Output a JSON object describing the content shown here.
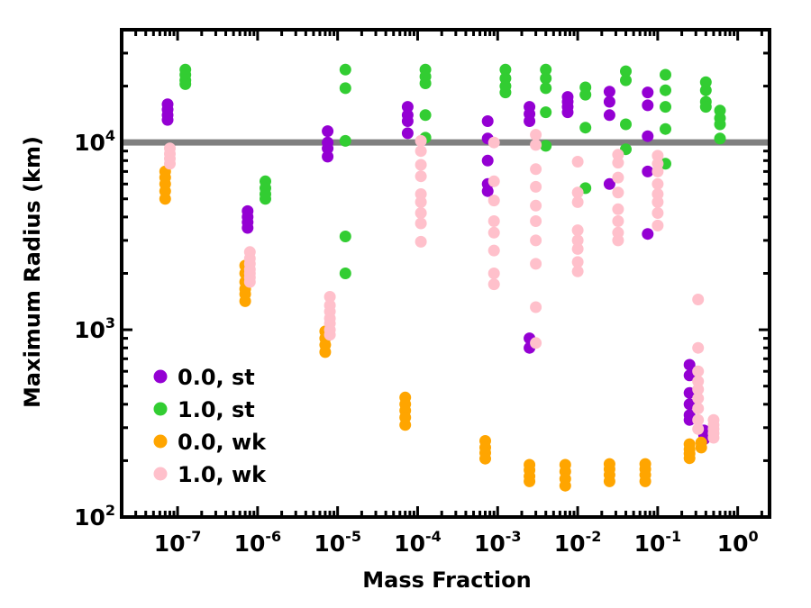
{
  "chart_data": {
    "type": "scatter",
    "title": "",
    "xlabel": "Mass Fraction",
    "ylabel": "Maximum Radius (km)",
    "xscale": "log",
    "yscale": "log",
    "xlim": [
      2e-08,
      2.5
    ],
    "ylim": [
      100,
      40000
    ],
    "grid": false,
    "legend_position": "bottom-left",
    "x_ticks": [
      {
        "base": "10",
        "exp": "-7"
      },
      {
        "base": "10",
        "exp": "-6"
      },
      {
        "base": "10",
        "exp": "-5"
      },
      {
        "base": "10",
        "exp": "-4"
      },
      {
        "base": "10",
        "exp": "-3"
      },
      {
        "base": "10",
        "exp": "-2"
      },
      {
        "base": "10",
        "exp": "-1"
      },
      {
        "base": "10",
        "exp": "0"
      }
    ],
    "y_ticks": [
      {
        "base": "10",
        "exp": "2"
      },
      {
        "base": "10",
        "exp": "3"
      },
      {
        "base": "10",
        "exp": "4"
      }
    ],
    "reference_line": {
      "y": 10000,
      "color": "#808080"
    },
    "series": [
      {
        "name": "0.0, st",
        "color": "#9400d3",
        "points": [
          [
            7.5e-08,
            16000
          ],
          [
            7.5e-08,
            15000
          ],
          [
            7.5e-08,
            14000
          ],
          [
            7.5e-08,
            13200
          ],
          [
            7.5e-07,
            4300
          ],
          [
            7.5e-07,
            4000
          ],
          [
            7.5e-07,
            3750
          ],
          [
            7.5e-07,
            3500
          ],
          [
            7.5e-06,
            11500
          ],
          [
            7.5e-06,
            10000
          ],
          [
            7.5e-06,
            9300
          ],
          [
            7.5e-06,
            8400
          ],
          [
            7.5e-05,
            15500
          ],
          [
            7.5e-05,
            14000
          ],
          [
            7.5e-05,
            13000
          ],
          [
            7.5e-05,
            11200
          ],
          [
            0.00075,
            13000
          ],
          [
            0.00075,
            10500
          ],
          [
            0.00075,
            8000
          ],
          [
            0.00075,
            6000
          ],
          [
            0.00075,
            5500
          ],
          [
            0.0025,
            15500
          ],
          [
            0.0025,
            14200
          ],
          [
            0.0025,
            13000
          ],
          [
            0.0025,
            900
          ],
          [
            0.0025,
            800
          ],
          [
            0.0075,
            17500
          ],
          [
            0.0075,
            16500
          ],
          [
            0.0075,
            15500
          ],
          [
            0.0075,
            14500
          ],
          [
            0.025,
            18700
          ],
          [
            0.025,
            16500
          ],
          [
            0.025,
            14000
          ],
          [
            0.025,
            6000
          ],
          [
            0.075,
            18500
          ],
          [
            0.075,
            15800
          ],
          [
            0.075,
            10800
          ],
          [
            0.075,
            7000
          ],
          [
            0.075,
            3250
          ],
          [
            0.25,
            650
          ],
          [
            0.25,
            570
          ],
          [
            0.25,
            460
          ],
          [
            0.25,
            400
          ],
          [
            0.25,
            350
          ],
          [
            0.25,
            330
          ],
          [
            0.38,
            290
          ],
          [
            0.38,
            275
          ],
          [
            0.38,
            260
          ]
        ]
      },
      {
        "name": "1.0, st",
        "color": "#32cd32",
        "points": [
          [
            1.25e-07,
            24500
          ],
          [
            1.25e-07,
            23000
          ],
          [
            1.25e-07,
            21500
          ],
          [
            1.25e-07,
            20500
          ],
          [
            1.25e-06,
            6200
          ],
          [
            1.25e-06,
            5700
          ],
          [
            1.25e-06,
            5300
          ],
          [
            1.25e-06,
            5000
          ],
          [
            1.25e-05,
            24500
          ],
          [
            1.25e-05,
            19500
          ],
          [
            1.25e-05,
            10200
          ],
          [
            1.25e-05,
            3150
          ],
          [
            1.25e-05,
            2000
          ],
          [
            0.000125,
            24500
          ],
          [
            0.000125,
            22500
          ],
          [
            0.000125,
            20700
          ],
          [
            0.000125,
            14000
          ],
          [
            0.000125,
            10600
          ],
          [
            0.00125,
            24500
          ],
          [
            0.00125,
            22000
          ],
          [
            0.00125,
            20000
          ],
          [
            0.00125,
            18500
          ],
          [
            0.004,
            24500
          ],
          [
            0.004,
            22000
          ],
          [
            0.004,
            19500
          ],
          [
            0.004,
            14500
          ],
          [
            0.004,
            9600
          ],
          [
            0.0125,
            19700
          ],
          [
            0.0125,
            18000
          ],
          [
            0.0125,
            12000
          ],
          [
            0.0125,
            5700
          ],
          [
            0.04,
            24000
          ],
          [
            0.04,
            21500
          ],
          [
            0.04,
            12500
          ],
          [
            0.04,
            9200
          ],
          [
            0.125,
            23000
          ],
          [
            0.125,
            19000
          ],
          [
            0.125,
            15500
          ],
          [
            0.125,
            11800
          ],
          [
            0.125,
            7700
          ],
          [
            0.4,
            21000
          ],
          [
            0.4,
            19000
          ],
          [
            0.4,
            16500
          ],
          [
            0.4,
            15500
          ],
          [
            0.6,
            14800
          ],
          [
            0.6,
            13500
          ],
          [
            0.6,
            12500
          ],
          [
            0.6,
            10500
          ]
        ]
      },
      {
        "name": "0.0, wk",
        "color": "#ffa500",
        "points": [
          [
            7e-08,
            7000
          ],
          [
            7e-08,
            6500
          ],
          [
            7e-08,
            6000
          ],
          [
            7e-08,
            5500
          ],
          [
            7e-08,
            5000
          ],
          [
            7e-07,
            2200
          ],
          [
            7e-07,
            2000
          ],
          [
            7e-07,
            1800
          ],
          [
            7e-07,
            1650
          ],
          [
            7e-07,
            1550
          ],
          [
            7e-07,
            1420
          ],
          [
            7e-06,
            980
          ],
          [
            7e-06,
            900
          ],
          [
            7e-06,
            830
          ],
          [
            7e-06,
            760
          ],
          [
            7e-05,
            435
          ],
          [
            7e-05,
            400
          ],
          [
            7e-05,
            370
          ],
          [
            7e-05,
            340
          ],
          [
            7e-05,
            310
          ],
          [
            0.0007,
            255
          ],
          [
            0.0007,
            235
          ],
          [
            0.0007,
            220
          ],
          [
            0.0007,
            205
          ],
          [
            0.0025,
            190
          ],
          [
            0.0025,
            178
          ],
          [
            0.0025,
            165
          ],
          [
            0.0025,
            155
          ],
          [
            0.007,
            190
          ],
          [
            0.007,
            175
          ],
          [
            0.007,
            160
          ],
          [
            0.007,
            147
          ],
          [
            0.025,
            192
          ],
          [
            0.025,
            180
          ],
          [
            0.025,
            168
          ],
          [
            0.025,
            155
          ],
          [
            0.07,
            192
          ],
          [
            0.07,
            180
          ],
          [
            0.07,
            168
          ],
          [
            0.07,
            155
          ],
          [
            0.25,
            245
          ],
          [
            0.25,
            230
          ],
          [
            0.25,
            218
          ],
          [
            0.25,
            206
          ],
          [
            0.35,
            250
          ],
          [
            0.35,
            235
          ]
        ]
      },
      {
        "name": "1.0, wk",
        "color": "#ffc0cb",
        "points": [
          [
            8e-08,
            9300
          ],
          [
            8e-08,
            8700
          ],
          [
            8e-08,
            8200
          ],
          [
            8e-08,
            7700
          ],
          [
            8e-07,
            2600
          ],
          [
            8e-07,
            2400
          ],
          [
            8e-07,
            2250
          ],
          [
            8e-07,
            2100
          ],
          [
            8e-07,
            2000
          ],
          [
            8e-07,
            1900
          ],
          [
            8e-07,
            1800
          ],
          [
            8e-06,
            1500
          ],
          [
            8e-06,
            1350
          ],
          [
            8e-06,
            1250
          ],
          [
            8e-06,
            1150
          ],
          [
            8e-06,
            1080
          ],
          [
            8e-06,
            1000
          ],
          [
            8e-06,
            940
          ],
          [
            0.00011,
            10200
          ],
          [
            0.00011,
            9000
          ],
          [
            0.00011,
            7600
          ],
          [
            0.00011,
            6600
          ],
          [
            0.00011,
            5300
          ],
          [
            0.00011,
            4800
          ],
          [
            0.00011,
            4200
          ],
          [
            0.00011,
            3700
          ],
          [
            0.00011,
            2950
          ],
          [
            0.0009,
            10000
          ],
          [
            0.0009,
            6200
          ],
          [
            0.0009,
            4900
          ],
          [
            0.0009,
            3800
          ],
          [
            0.0009,
            3300
          ],
          [
            0.0009,
            2650
          ],
          [
            0.0009,
            2000
          ],
          [
            0.0009,
            1750
          ],
          [
            0.003,
            11000
          ],
          [
            0.003,
            9700
          ],
          [
            0.003,
            7200
          ],
          [
            0.003,
            5800
          ],
          [
            0.003,
            4600
          ],
          [
            0.003,
            3800
          ],
          [
            0.003,
            3000
          ],
          [
            0.003,
            2250
          ],
          [
            0.003,
            1320
          ],
          [
            0.003,
            850
          ],
          [
            0.01,
            7900
          ],
          [
            0.01,
            5400
          ],
          [
            0.01,
            4800
          ],
          [
            0.01,
            3400
          ],
          [
            0.01,
            3000
          ],
          [
            0.01,
            2700
          ],
          [
            0.01,
            2300
          ],
          [
            0.01,
            2050
          ],
          [
            0.032,
            8600
          ],
          [
            0.032,
            7800
          ],
          [
            0.032,
            6500
          ],
          [
            0.032,
            5400
          ],
          [
            0.032,
            4400
          ],
          [
            0.032,
            3800
          ],
          [
            0.032,
            3300
          ],
          [
            0.032,
            3000
          ],
          [
            0.1,
            8500
          ],
          [
            0.1,
            7700
          ],
          [
            0.1,
            7000
          ],
          [
            0.1,
            6000
          ],
          [
            0.1,
            5300
          ],
          [
            0.1,
            4800
          ],
          [
            0.1,
            4200
          ],
          [
            0.1,
            3600
          ],
          [
            0.32,
            1450
          ],
          [
            0.32,
            800
          ],
          [
            0.32,
            600
          ],
          [
            0.32,
            530
          ],
          [
            0.32,
            480
          ],
          [
            0.32,
            430
          ],
          [
            0.32,
            380
          ],
          [
            0.32,
            330
          ],
          [
            0.32,
            295
          ],
          [
            0.5,
            330
          ],
          [
            0.5,
            310
          ],
          [
            0.5,
            295
          ],
          [
            0.5,
            280
          ],
          [
            0.5,
            265
          ]
        ]
      }
    ]
  }
}
